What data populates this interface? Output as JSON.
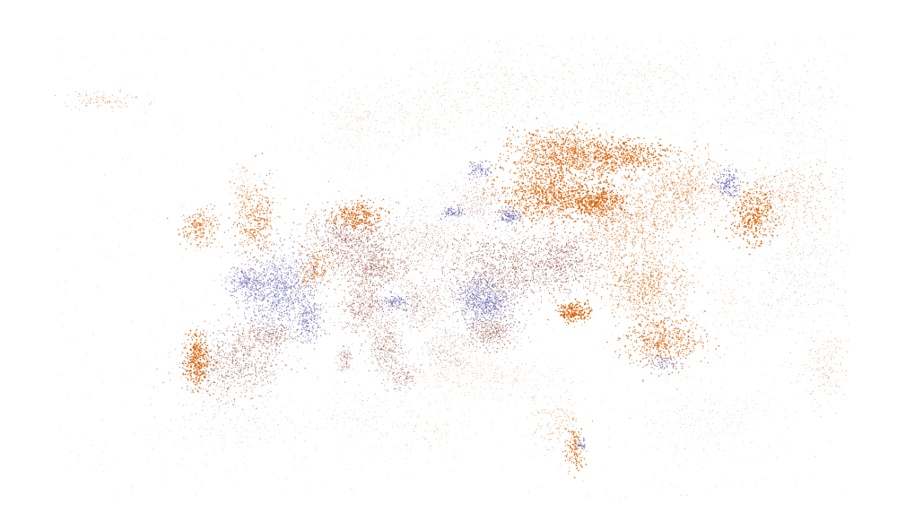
{
  "map": {
    "title": "",
    "type": "dot-density",
    "background_color": "#ffffff",
    "categories": [
      {
        "id": "orange",
        "color": "#d95f02"
      },
      {
        "id": "purple",
        "color": "#7570b3"
      },
      {
        "id": "brown",
        "color": "#a0604e"
      }
    ],
    "legend": null
  }
}
